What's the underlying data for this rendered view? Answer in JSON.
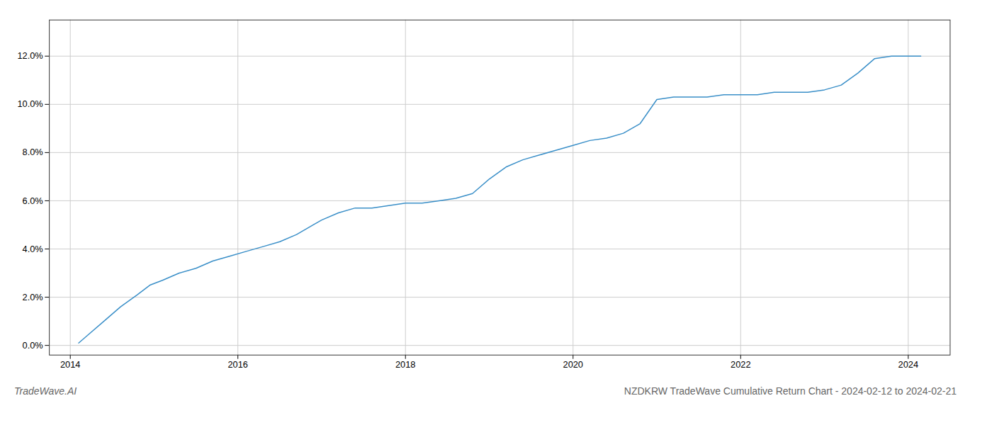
{
  "chart_data": {
    "type": "line",
    "title": "NZDKRW TradeWave Cumulative Return Chart - 2024-02-12 to 2024-02-21",
    "annotations": [
      "TradeWave.AI"
    ],
    "color": "#3a8fc8",
    "x": [
      2014.1,
      2014.2,
      2014.4,
      2014.6,
      2014.8,
      2014.95,
      2015.1,
      2015.3,
      2015.5,
      2015.7,
      2015.9,
      2016.1,
      2016.3,
      2016.5,
      2016.7,
      2016.9,
      2017.0,
      2017.2,
      2017.4,
      2017.6,
      2017.8,
      2018.0,
      2018.2,
      2018.4,
      2018.6,
      2018.8,
      2019.0,
      2019.2,
      2019.4,
      2019.6,
      2019.8,
      2020.0,
      2020.2,
      2020.4,
      2020.6,
      2020.8,
      2021.0,
      2021.2,
      2021.4,
      2021.6,
      2021.8,
      2022.0,
      2022.2,
      2022.4,
      2022.6,
      2022.8,
      2023.0,
      2023.2,
      2023.4,
      2023.6,
      2023.8,
      2024.0,
      2024.15
    ],
    "values": [
      0.001,
      0.004,
      0.01,
      0.016,
      0.021,
      0.025,
      0.027,
      0.03,
      0.032,
      0.035,
      0.037,
      0.039,
      0.041,
      0.043,
      0.046,
      0.05,
      0.052,
      0.055,
      0.057,
      0.057,
      0.058,
      0.059,
      0.059,
      0.06,
      0.061,
      0.063,
      0.069,
      0.074,
      0.077,
      0.079,
      0.081,
      0.083,
      0.085,
      0.086,
      0.088,
      0.092,
      0.102,
      0.103,
      0.103,
      0.103,
      0.104,
      0.104,
      0.104,
      0.105,
      0.105,
      0.105,
      0.106,
      0.108,
      0.113,
      0.119,
      0.12,
      0.12,
      0.12
    ],
    "xlim": [
      2013.75,
      2024.5
    ],
    "xticks": [
      2014,
      2016,
      2018,
      2020,
      2022,
      2024
    ],
    "ylim": [
      -0.004,
      0.135
    ],
    "yticks": [
      {
        "value": 0.0,
        "label": "0.0%"
      },
      {
        "value": 0.02,
        "label": "2.0%"
      },
      {
        "value": 0.04,
        "label": "4.0%"
      },
      {
        "value": 0.06,
        "label": "6.0%"
      },
      {
        "value": 0.08,
        "label": "8.0%"
      },
      {
        "value": 0.1,
        "label": "10.0%"
      },
      {
        "value": 0.12,
        "label": "12.0%"
      }
    ],
    "grid": true
  }
}
